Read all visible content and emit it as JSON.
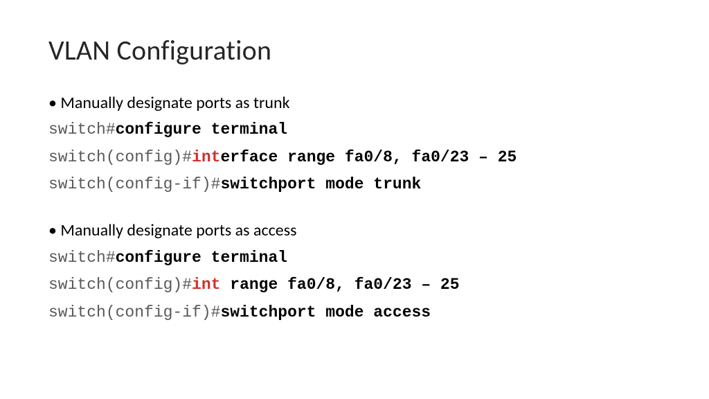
{
  "slide": {
    "title": "VLAN Configuration",
    "title_fontsize": 40,
    "title_color": "#262626",
    "background_color": "#ffffff",
    "body_font": "Calibri",
    "code_font": "Courier New",
    "body_fontsize": 24,
    "code_fontsize": 23,
    "prompt_color": "#595959",
    "command_color": "#000000",
    "keyword_color": "#d12f2f",
    "sections": [
      {
        "bullet": "Manually designate ports as trunk",
        "lines": [
          {
            "prompt": "switch#",
            "keyword": "",
            "cmd": "configure terminal"
          },
          {
            "prompt": "switch(config)#",
            "keyword": "int",
            "cmd": "erface range fa0/8, fa0/23 – 25"
          },
          {
            "prompt": "switch(config-if)#",
            "keyword": "",
            "cmd": "switchport mode trunk"
          }
        ]
      },
      {
        "bullet": "Manually designate ports as access",
        "lines": [
          {
            "prompt": "switch#",
            "keyword": "",
            "cmd": "configure terminal"
          },
          {
            "prompt": "switch(config)#",
            "keyword": "int",
            "cmd": " range fa0/8, fa0/23 – 25"
          },
          {
            "prompt": "switch(config-if)#",
            "keyword": "",
            "cmd": "switchport mode access"
          }
        ]
      }
    ]
  }
}
